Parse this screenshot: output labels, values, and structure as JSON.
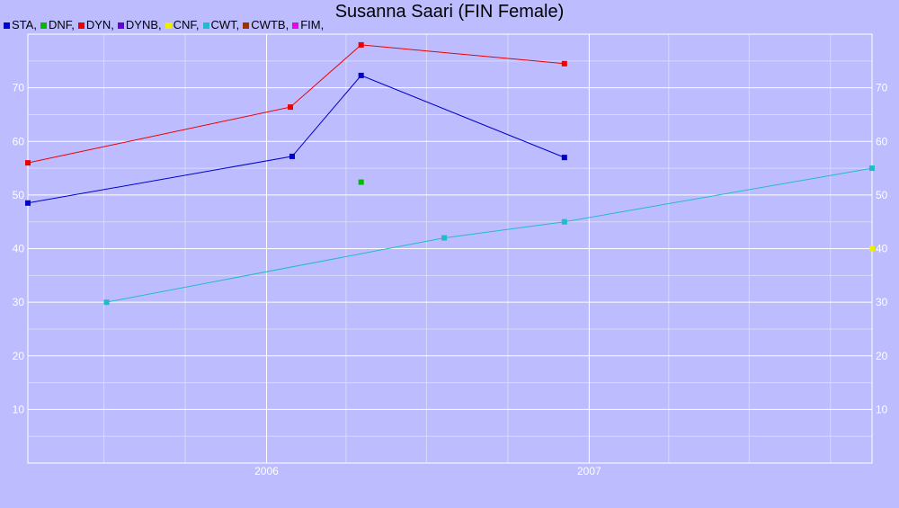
{
  "chart_data": {
    "type": "line",
    "title": "Susanna Saari (FIN Female)",
    "xlabel": "",
    "ylabel": "",
    "x_tick_labels": [
      "2006",
      "2007"
    ],
    "x_ticks": [
      "2006-01-01",
      "2007-01-01"
    ],
    "xlim": [
      "2005-04-06",
      "2007-11-17"
    ],
    "ylim": [
      0,
      80
    ],
    "y_ticks": [
      10,
      20,
      30,
      40,
      50,
      60,
      70
    ],
    "grid": true,
    "legend_position": "top-left",
    "legend": [
      {
        "name": "STA,",
        "color": "#0000cc"
      },
      {
        "name": "DNF,",
        "color": "#00bb00"
      },
      {
        "name": "DYN,",
        "color": "#ee0000"
      },
      {
        "name": "DYNB,",
        "color": "#6a00d8"
      },
      {
        "name": "CNF,",
        "color": "#eeee00"
      },
      {
        "name": "CWT,",
        "color": "#22bbcc"
      },
      {
        "name": "CWTB,",
        "color": "#993300"
      },
      {
        "name": "FIM,",
        "color": "#ee00ee"
      }
    ],
    "series": [
      {
        "name": "STA,",
        "color": "#0000cc",
        "points": [
          [
            "2005-04-06",
            48.5
          ],
          [
            "2006-01-30",
            57.2
          ],
          [
            "2006-04-18",
            72.3
          ],
          [
            "2006-12-04",
            57.0
          ]
        ]
      },
      {
        "name": "DNF,",
        "color": "#00bb00",
        "points": [
          [
            "2006-04-18",
            52.4
          ]
        ]
      },
      {
        "name": "DYN,",
        "color": "#ee0000",
        "points": [
          [
            "2005-04-06",
            56.0
          ],
          [
            "2006-01-28",
            66.4
          ],
          [
            "2006-04-18",
            78.0
          ],
          [
            "2006-12-04",
            74.5
          ]
        ]
      },
      {
        "name": "CNF,",
        "color": "#eeee00",
        "points": [
          [
            "2007-11-17",
            40.0
          ]
        ]
      },
      {
        "name": "CWT,",
        "color": "#22bbcc",
        "points": [
          [
            "2005-07-04",
            30.0
          ],
          [
            "2006-07-21",
            42.0
          ],
          [
            "2006-12-04",
            45.0
          ],
          [
            "2007-11-17",
            55.0
          ]
        ]
      }
    ]
  }
}
